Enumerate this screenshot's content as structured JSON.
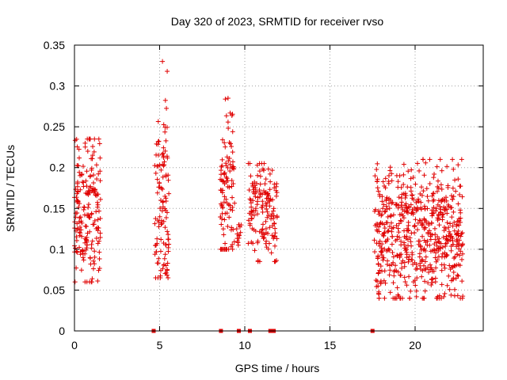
{
  "chart_data": {
    "type": "scatter",
    "title": "Day 320 of 2023, SRMTID for receiver rvso",
    "xlabel": "GPS time / hours",
    "ylabel": "SRMTID / TECUs",
    "xlim": [
      0,
      24
    ],
    "ylim": [
      0,
      0.35
    ],
    "xticks": [
      0,
      5,
      10,
      15,
      20
    ],
    "xtick_labels": [
      "0",
      "5",
      "10",
      "15",
      "20"
    ],
    "yticks": [
      0,
      0.05,
      0.1,
      0.15,
      0.2,
      0.25,
      0.3,
      0.35
    ],
    "ytick_labels": [
      "0",
      "0.05",
      "0.1",
      "0.15",
      "0.2",
      "0.25",
      "0.3",
      "0.35"
    ],
    "grid": true,
    "marker": "+",
    "color": "#e00000",
    "zero_markers_x": [
      4.65,
      8.6,
      9.65,
      10.3,
      11.5,
      11.7,
      17.5
    ],
    "clusters": [
      {
        "x_start": 0.0,
        "x_end": 1.55,
        "y_min": 0.06,
        "y_max": 0.235,
        "y_center": 0.145,
        "count": 190
      },
      {
        "x_start": 4.7,
        "x_end": 5.55,
        "y_min": 0.065,
        "y_max": 0.33,
        "y_center": 0.16,
        "count": 110
      },
      {
        "x_start": 8.55,
        "x_end": 9.4,
        "y_min": 0.1,
        "y_max": 0.285,
        "y_center": 0.175,
        "count": 100
      },
      {
        "x_start": 9.5,
        "x_end": 9.8,
        "y_min": 0.105,
        "y_max": 0.13,
        "y_center": 0.12,
        "count": 12
      },
      {
        "x_start": 10.2,
        "x_end": 11.9,
        "y_min": 0.085,
        "y_max": 0.205,
        "y_center": 0.145,
        "count": 150
      },
      {
        "x_start": 17.6,
        "x_end": 22.8,
        "y_min": 0.04,
        "y_max": 0.21,
        "y_center": 0.12,
        "count": 620
      }
    ]
  }
}
